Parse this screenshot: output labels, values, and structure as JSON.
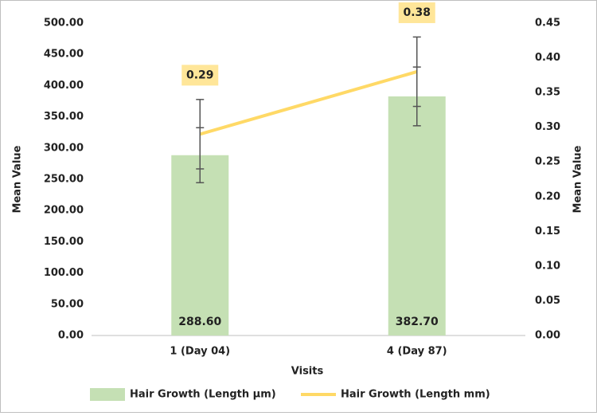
{
  "chart_data": {
    "type": "bar-line",
    "x_label": "Visits",
    "y_label": "Mean Value",
    "y2_label": "Mean Value",
    "categories": [
      "1 (Day 04)",
      "4 (Day 87)"
    ],
    "series": [
      {
        "name": "Hair Growth (Length µm)",
        "type": "bar",
        "color": "#c5e0b4",
        "values": [
          288.6,
          382.7
        ],
        "value_labels": [
          "288.60",
          "382.70"
        ],
        "errors": [
          44,
          47
        ]
      },
      {
        "name": "Hair Growth (Length mm)",
        "type": "line",
        "axis": "y2",
        "color": "#ffd966",
        "values": [
          0.29,
          0.38
        ],
        "errors": [
          0.05,
          0.05
        ]
      }
    ],
    "ylim": [
      0,
      500
    ],
    "yticks": [
      {
        "value": 0,
        "label": "0.00"
      },
      {
        "value": 50,
        "label": "50.00"
      },
      {
        "value": 100,
        "label": "100.00"
      },
      {
        "value": 150,
        "label": "150.00"
      },
      {
        "value": 200,
        "label": "200.00"
      },
      {
        "value": 250,
        "label": "250.00"
      },
      {
        "value": 300,
        "label": "300.00"
      },
      {
        "value": 350,
        "label": "350.00"
      },
      {
        "value": 400,
        "label": "400.00"
      },
      {
        "value": 450,
        "label": "450.00"
      },
      {
        "value": 500,
        "label": "500.00"
      }
    ],
    "y2lim": [
      0,
      0.45
    ],
    "y2ticks": [
      {
        "value": 0,
        "label": "0.00"
      },
      0.05,
      {
        "value": 0.1,
        "label": "0.10"
      },
      0.15,
      {
        "value": 0.2,
        "label": "0.20"
      },
      0.25,
      {
        "value": 0.3,
        "label": "0.30"
      },
      0.35,
      {
        "value": 0.4,
        "label": "0.40"
      },
      0.45
    ],
    "grid": false,
    "legend": "bottom"
  }
}
